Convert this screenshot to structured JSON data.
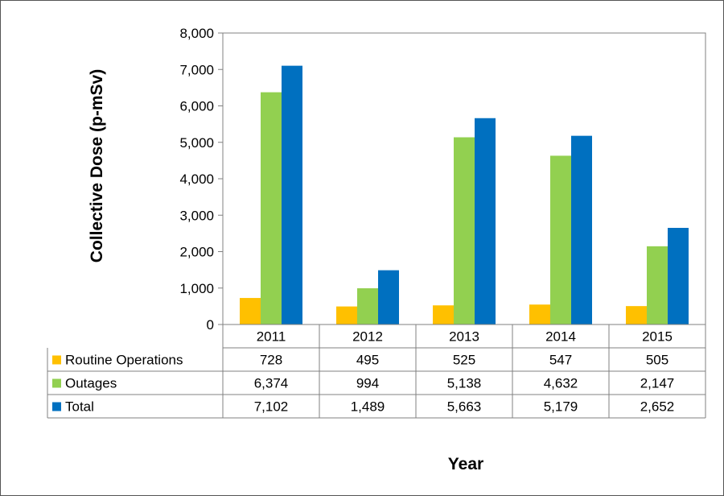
{
  "chart_data": {
    "type": "bar",
    "categories": [
      "2011",
      "2012",
      "2013",
      "2014",
      "2015"
    ],
    "series": [
      {
        "name": "Routine Operations",
        "color": "#FFC000",
        "values": [
          728,
          495,
          525,
          547,
          505
        ],
        "labels": [
          "728",
          "495",
          "525",
          "547",
          "505"
        ]
      },
      {
        "name": "Outages",
        "color": "#92D050",
        "values": [
          6374,
          994,
          5138,
          4632,
          2147
        ],
        "labels": [
          "6,374",
          "994",
          "5,138",
          "4,632",
          "2,147"
        ]
      },
      {
        "name": "Total",
        "color": "#0070C0",
        "values": [
          7102,
          1489,
          5663,
          5179,
          2652
        ],
        "labels": [
          "7,102",
          "1,489",
          "5,663",
          "5,179",
          "2,652"
        ]
      }
    ],
    "ylabel": "Collective Dose (p-mSv)",
    "xlabel": "Year",
    "ylim": [
      0,
      8000
    ],
    "yticks": [
      "0",
      "1,000",
      "2,000",
      "3,000",
      "4,000",
      "5,000",
      "6,000",
      "7,000",
      "8,000"
    ],
    "grid": false,
    "legend": "data-table"
  }
}
